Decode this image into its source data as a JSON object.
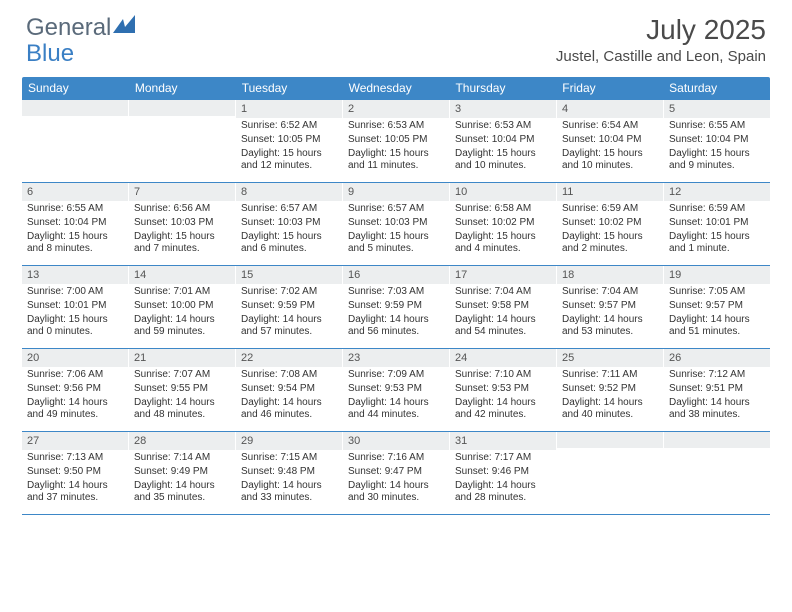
{
  "logo": {
    "part1": "General",
    "part2": "Blue"
  },
  "title": "July 2025",
  "location": "Justel, Castille and Leon, Spain",
  "weekdays": [
    "Sunday",
    "Monday",
    "Tuesday",
    "Wednesday",
    "Thursday",
    "Friday",
    "Saturday"
  ],
  "header_bg": "#3d87c7",
  "cell_header_bg": "#eceeef",
  "border_color": "#3d87c7",
  "weeks": [
    [
      null,
      null,
      {
        "n": "1",
        "sr": "6:52 AM",
        "ss": "10:05 PM",
        "dl": "15 hours and 12 minutes."
      },
      {
        "n": "2",
        "sr": "6:53 AM",
        "ss": "10:05 PM",
        "dl": "15 hours and 11 minutes."
      },
      {
        "n": "3",
        "sr": "6:53 AM",
        "ss": "10:04 PM",
        "dl": "15 hours and 10 minutes."
      },
      {
        "n": "4",
        "sr": "6:54 AM",
        "ss": "10:04 PM",
        "dl": "15 hours and 10 minutes."
      },
      {
        "n": "5",
        "sr": "6:55 AM",
        "ss": "10:04 PM",
        "dl": "15 hours and 9 minutes."
      }
    ],
    [
      {
        "n": "6",
        "sr": "6:55 AM",
        "ss": "10:04 PM",
        "dl": "15 hours and 8 minutes."
      },
      {
        "n": "7",
        "sr": "6:56 AM",
        "ss": "10:03 PM",
        "dl": "15 hours and 7 minutes."
      },
      {
        "n": "8",
        "sr": "6:57 AM",
        "ss": "10:03 PM",
        "dl": "15 hours and 6 minutes."
      },
      {
        "n": "9",
        "sr": "6:57 AM",
        "ss": "10:03 PM",
        "dl": "15 hours and 5 minutes."
      },
      {
        "n": "10",
        "sr": "6:58 AM",
        "ss": "10:02 PM",
        "dl": "15 hours and 4 minutes."
      },
      {
        "n": "11",
        "sr": "6:59 AM",
        "ss": "10:02 PM",
        "dl": "15 hours and 2 minutes."
      },
      {
        "n": "12",
        "sr": "6:59 AM",
        "ss": "10:01 PM",
        "dl": "15 hours and 1 minute."
      }
    ],
    [
      {
        "n": "13",
        "sr": "7:00 AM",
        "ss": "10:01 PM",
        "dl": "15 hours and 0 minutes."
      },
      {
        "n": "14",
        "sr": "7:01 AM",
        "ss": "10:00 PM",
        "dl": "14 hours and 59 minutes."
      },
      {
        "n": "15",
        "sr": "7:02 AM",
        "ss": "9:59 PM",
        "dl": "14 hours and 57 minutes."
      },
      {
        "n": "16",
        "sr": "7:03 AM",
        "ss": "9:59 PM",
        "dl": "14 hours and 56 minutes."
      },
      {
        "n": "17",
        "sr": "7:04 AM",
        "ss": "9:58 PM",
        "dl": "14 hours and 54 minutes."
      },
      {
        "n": "18",
        "sr": "7:04 AM",
        "ss": "9:57 PM",
        "dl": "14 hours and 53 minutes."
      },
      {
        "n": "19",
        "sr": "7:05 AM",
        "ss": "9:57 PM",
        "dl": "14 hours and 51 minutes."
      }
    ],
    [
      {
        "n": "20",
        "sr": "7:06 AM",
        "ss": "9:56 PM",
        "dl": "14 hours and 49 minutes."
      },
      {
        "n": "21",
        "sr": "7:07 AM",
        "ss": "9:55 PM",
        "dl": "14 hours and 48 minutes."
      },
      {
        "n": "22",
        "sr": "7:08 AM",
        "ss": "9:54 PM",
        "dl": "14 hours and 46 minutes."
      },
      {
        "n": "23",
        "sr": "7:09 AM",
        "ss": "9:53 PM",
        "dl": "14 hours and 44 minutes."
      },
      {
        "n": "24",
        "sr": "7:10 AM",
        "ss": "9:53 PM",
        "dl": "14 hours and 42 minutes."
      },
      {
        "n": "25",
        "sr": "7:11 AM",
        "ss": "9:52 PM",
        "dl": "14 hours and 40 minutes."
      },
      {
        "n": "26",
        "sr": "7:12 AM",
        "ss": "9:51 PM",
        "dl": "14 hours and 38 minutes."
      }
    ],
    [
      {
        "n": "27",
        "sr": "7:13 AM",
        "ss": "9:50 PM",
        "dl": "14 hours and 37 minutes."
      },
      {
        "n": "28",
        "sr": "7:14 AM",
        "ss": "9:49 PM",
        "dl": "14 hours and 35 minutes."
      },
      {
        "n": "29",
        "sr": "7:15 AM",
        "ss": "9:48 PM",
        "dl": "14 hours and 33 minutes."
      },
      {
        "n": "30",
        "sr": "7:16 AM",
        "ss": "9:47 PM",
        "dl": "14 hours and 30 minutes."
      },
      {
        "n": "31",
        "sr": "7:17 AM",
        "ss": "9:46 PM",
        "dl": "14 hours and 28 minutes."
      },
      null,
      null
    ]
  ],
  "labels": {
    "sunrise": "Sunrise:",
    "sunset": "Sunset:",
    "daylight": "Daylight:"
  }
}
